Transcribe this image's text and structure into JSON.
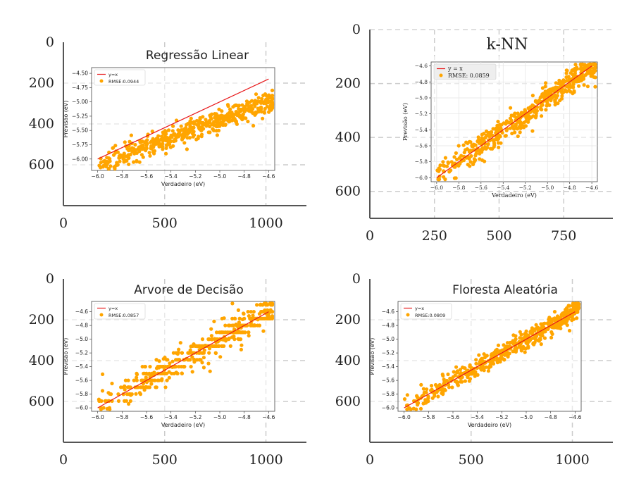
{
  "chart_data": [
    {
      "type": "scatter",
      "title": "Regressão Linear",
      "xlabel": "Verdadeiro (eV)",
      "ylabel": "Previsão (eV)",
      "xticks": [
        "−6.0",
        "−5.8",
        "−5.6",
        "−5.4",
        "−5.2",
        "−5.0",
        "−4.8",
        "−4.6"
      ],
      "yticks": [
        "−4.50",
        "−4.75",
        "−5.00",
        "−5.25",
        "−5.50",
        "−5.75",
        "−6.00"
      ],
      "xlim": [
        -6.05,
        -4.55
      ],
      "ylim": [
        -6.2,
        -4.4
      ],
      "legend": {
        "line": "y=x",
        "marker": "RMSE:0.0944"
      },
      "noise": 0.09,
      "model": "linear",
      "outer_x_ticks": [
        "0",
        "500",
        "1000"
      ],
      "outer_y_ticks": [
        "0",
        "200",
        "400",
        "600"
      ]
    },
    {
      "type": "scatter",
      "title": "k-NN",
      "xlabel": "Verdadeiro (eV)",
      "ylabel": "Previsão (eV)",
      "xticks": [
        "−6.0",
        "−5.8",
        "−5.6",
        "−5.4",
        "−5.2",
        "−5.0",
        "−4.8",
        "−4.6"
      ],
      "yticks": [
        "−4.6",
        "−4.8",
        "−5.0",
        "−5.2",
        "−5.4",
        "−5.6",
        "−5.8",
        "−6.0"
      ],
      "xlim": [
        -6.05,
        -4.55
      ],
      "ylim": [
        -6.05,
        -4.55
      ],
      "legend": {
        "line": "y = x",
        "marker": "RMSE: 0.0859"
      },
      "noise": 0.085,
      "model": "knn",
      "outer_x_ticks": [
        "0",
        "250",
        "500",
        "750"
      ],
      "outer_y_ticks": [
        "0",
        "200",
        "400",
        "600"
      ]
    },
    {
      "type": "scatter",
      "title": "Arvore de Decisão",
      "xlabel": "Verdadeiro (eV)",
      "ylabel": "Previsão (eV)",
      "xticks": [
        "−6.0",
        "−5.8",
        "−5.6",
        "−5.4",
        "−5.2",
        "−5.0",
        "−4.8",
        "−4.6"
      ],
      "yticks": [
        "−4.6",
        "−4.8",
        "−5.0",
        "−5.2",
        "−5.4",
        "−5.6",
        "−5.8",
        "−6.0"
      ],
      "xlim": [
        -6.05,
        -4.55
      ],
      "ylim": [
        -6.05,
        -4.45
      ],
      "legend": {
        "line": "y=x",
        "marker": "RMSE:0.0857"
      },
      "noise": 0.08,
      "model": "tree",
      "outer_x_ticks": [
        "0",
        "500",
        "1000"
      ],
      "outer_y_ticks": [
        "0",
        "200",
        "400",
        "600"
      ]
    },
    {
      "type": "scatter",
      "title": "Floresta Aleatória",
      "xlabel": "Verdadeiro (eV)",
      "ylabel": "Previsão (eV)",
      "xticks": [
        "−6.0",
        "−5.8",
        "−5.6",
        "−5.4",
        "−5.2",
        "−5.0",
        "−4.8",
        "−4.6"
      ],
      "yticks": [
        "−4.6",
        "−4.8",
        "−5.0",
        "−5.2",
        "−5.4",
        "−5.6",
        "−5.8",
        "−6.0"
      ],
      "xlim": [
        -6.05,
        -4.55
      ],
      "ylim": [
        -6.05,
        -4.45
      ],
      "legend": {
        "line": "y=x",
        "marker": "RMSE:0.0809"
      },
      "noise": 0.08,
      "model": "forest",
      "outer_x_ticks": [
        "0",
        "500",
        "1000"
      ],
      "outer_y_ticks": [
        "0",
        "200",
        "400",
        "600"
      ]
    }
  ],
  "colors": {
    "points": "#FFA500",
    "line": "#E8191B",
    "grid": "#cccccc",
    "axis": "#555555"
  }
}
